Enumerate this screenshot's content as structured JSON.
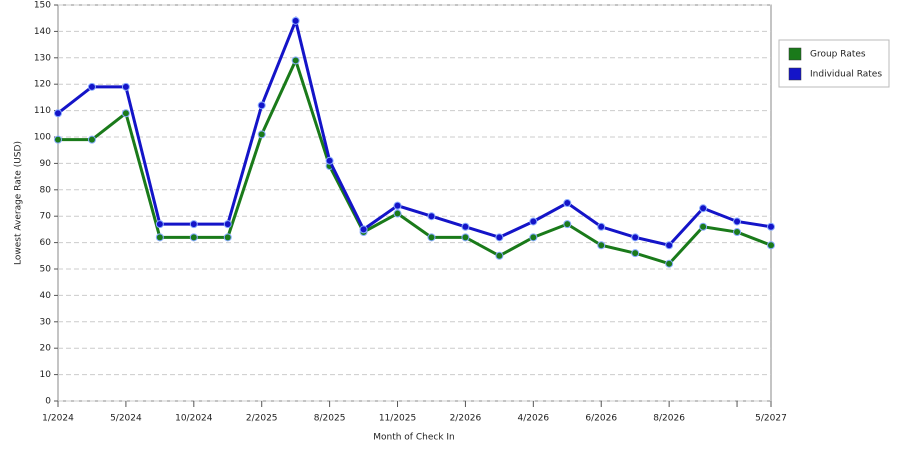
{
  "chart_data": {
    "type": "line",
    "x_label": "Month of Check In",
    "y_label": "Lowest Average Rate (USD)",
    "categories": [
      "1/2024",
      null,
      "5/2024",
      null,
      "10/2024",
      null,
      "2/2025",
      null,
      "8/2025",
      null,
      "11/2025",
      null,
      "2/2026",
      null,
      "4/2026",
      null,
      "6/2026",
      null,
      "8/2026",
      null,
      null,
      "5/2027"
    ],
    "series": [
      {
        "name": "Group Rates",
        "color": "#1a7a1a",
        "values": [
          99,
          99,
          109,
          62,
          62,
          62,
          101,
          129,
          89,
          64,
          71,
          62,
          62,
          55,
          62,
          67,
          59,
          56,
          52,
          66,
          64,
          59
        ]
      },
      {
        "name": "Individual Rates",
        "color": "#1414c8",
        "values": [
          109,
          119,
          119,
          67,
          67,
          67,
          112,
          144,
          91,
          65,
          74,
          70,
          66,
          62,
          68,
          75,
          66,
          62,
          59,
          73,
          68,
          66
        ]
      }
    ],
    "ylim": [
      0,
      150
    ],
    "yticks": [
      0,
      10,
      20,
      30,
      40,
      50,
      60,
      70,
      80,
      90,
      100,
      110,
      120,
      130,
      140,
      150
    ],
    "grid": true,
    "legend": "right"
  }
}
